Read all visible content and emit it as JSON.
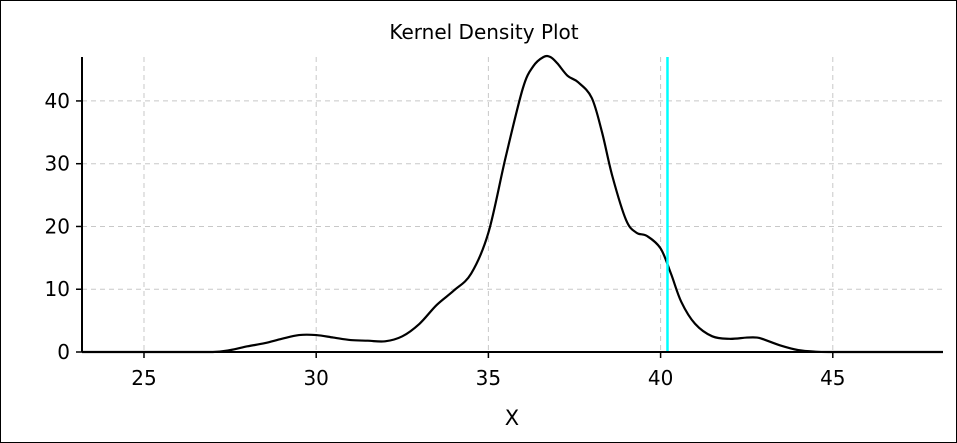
{
  "chart_data": {
    "type": "line",
    "title": "Kernel Density Plot",
    "xlabel": "X",
    "ylabel": "",
    "xlim": [
      23.2,
      48.2
    ],
    "ylim": [
      0,
      47
    ],
    "xticks": [
      25,
      30,
      35,
      40,
      45
    ],
    "yticks": [
      0,
      10,
      20,
      30,
      40
    ],
    "grid": true,
    "legend": "none",
    "series": [
      {
        "color": "#000000",
        "x": [
          23.2,
          25,
          26,
          27,
          27.5,
          28,
          28.5,
          29,
          29.5,
          30,
          30.5,
          31,
          31.5,
          32,
          32.5,
          33,
          33.5,
          34,
          34.5,
          35,
          35.5,
          36,
          36.3,
          36.6,
          36.8,
          37,
          37.3,
          37.6,
          38,
          38.3,
          38.6,
          39,
          39.3,
          39.6,
          40,
          40.3,
          40.6,
          41,
          41.5,
          42,
          42.5,
          42.8,
          43,
          43.5,
          44,
          44.5,
          45,
          46,
          47,
          48.2
        ],
        "values": [
          0,
          0,
          0,
          0,
          0.3,
          0.9,
          1.4,
          2.1,
          2.7,
          2.7,
          2.3,
          1.9,
          1.8,
          1.7,
          2.5,
          4.5,
          7.5,
          9.8,
          12.5,
          19,
          31,
          42,
          45.5,
          47,
          47,
          46,
          44,
          43,
          40.5,
          35,
          28,
          21,
          19,
          18.5,
          16.5,
          12.5,
          8,
          4.5,
          2.5,
          2.1,
          2.3,
          2.3,
          2.0,
          1.0,
          0.3,
          0.05,
          0,
          0,
          0,
          0
        ]
      },
      {
        "type": "vline",
        "color": "#00ffff",
        "x": 40.2
      }
    ]
  }
}
